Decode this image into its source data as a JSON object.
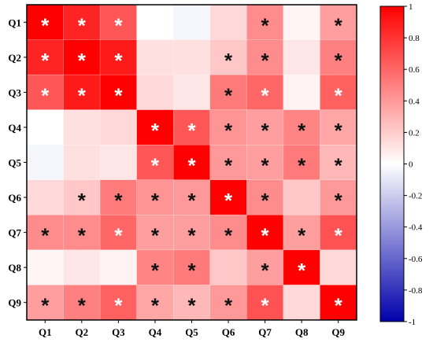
{
  "chart_data": {
    "type": "heatmap",
    "title": "",
    "xlabel": "",
    "ylabel": "",
    "x_labels": [
      "Q1",
      "Q2",
      "Q3",
      "Q4",
      "Q5",
      "Q6",
      "Q7",
      "Q8",
      "Q9"
    ],
    "y_labels": [
      "Q1",
      "Q2",
      "Q3",
      "Q4",
      "Q5",
      "Q6",
      "Q7",
      "Q8",
      "Q9"
    ],
    "values": [
      [
        1.0,
        0.86,
        0.66,
        0.0,
        -0.04,
        0.15,
        0.45,
        0.04,
        0.38
      ],
      [
        0.86,
        1.0,
        0.9,
        0.12,
        0.12,
        0.22,
        0.45,
        0.1,
        0.5
      ],
      [
        0.66,
        0.9,
        1.0,
        0.15,
        0.1,
        0.52,
        0.6,
        0.05,
        0.62
      ],
      [
        0.0,
        0.12,
        0.15,
        1.0,
        0.66,
        0.42,
        0.38,
        0.48,
        0.35
      ],
      [
        -0.04,
        0.12,
        0.1,
        0.66,
        1.0,
        0.4,
        0.38,
        0.52,
        0.28
      ],
      [
        0.15,
        0.22,
        0.52,
        0.42,
        0.4,
        1.0,
        0.45,
        0.22,
        0.4
      ],
      [
        0.45,
        0.45,
        0.6,
        0.38,
        0.38,
        0.45,
        1.0,
        0.38,
        0.68
      ],
      [
        0.04,
        0.1,
        0.05,
        0.48,
        0.52,
        0.22,
        0.38,
        1.0,
        0.15
      ],
      [
        0.38,
        0.5,
        0.62,
        0.35,
        0.28,
        0.4,
        0.68,
        0.15,
        1.0
      ]
    ],
    "significance": [
      [
        1,
        1,
        1,
        0,
        0,
        0,
        1,
        0,
        1
      ],
      [
        1,
        1,
        1,
        0,
        0,
        1,
        1,
        0,
        1
      ],
      [
        1,
        1,
        1,
        0,
        0,
        1,
        1,
        0,
        1
      ],
      [
        0,
        0,
        0,
        1,
        1,
        1,
        1,
        1,
        1
      ],
      [
        0,
        0,
        0,
        1,
        1,
        1,
        1,
        1,
        1
      ],
      [
        0,
        1,
        1,
        1,
        1,
        1,
        1,
        0,
        1
      ],
      [
        1,
        1,
        1,
        1,
        1,
        1,
        1,
        1,
        1
      ],
      [
        0,
        0,
        0,
        1,
        1,
        0,
        1,
        1,
        0
      ],
      [
        1,
        1,
        1,
        1,
        1,
        1,
        1,
        0,
        1
      ]
    ],
    "marker_symbol": "*",
    "marker_color_white_at_or_above": 0.6,
    "colorbar": {
      "range": [
        -1,
        1
      ],
      "ticks": [
        1,
        0.8,
        0.6,
        0.4,
        0.2,
        0,
        -0.2,
        -0.4,
        -0.6,
        -0.8,
        -1
      ],
      "tick_labels": [
        "1",
        "0.8",
        "0.6",
        "0.4",
        "0.2",
        "0",
        "-0.2",
        "-0.4",
        "-0.6",
        "-0.8",
        "-1"
      ],
      "colors": {
        "negative": "#0000aa",
        "zero": "#ffffff",
        "positive": "#ff0000"
      }
    },
    "grid": true,
    "legend": "colorbar-right"
  }
}
